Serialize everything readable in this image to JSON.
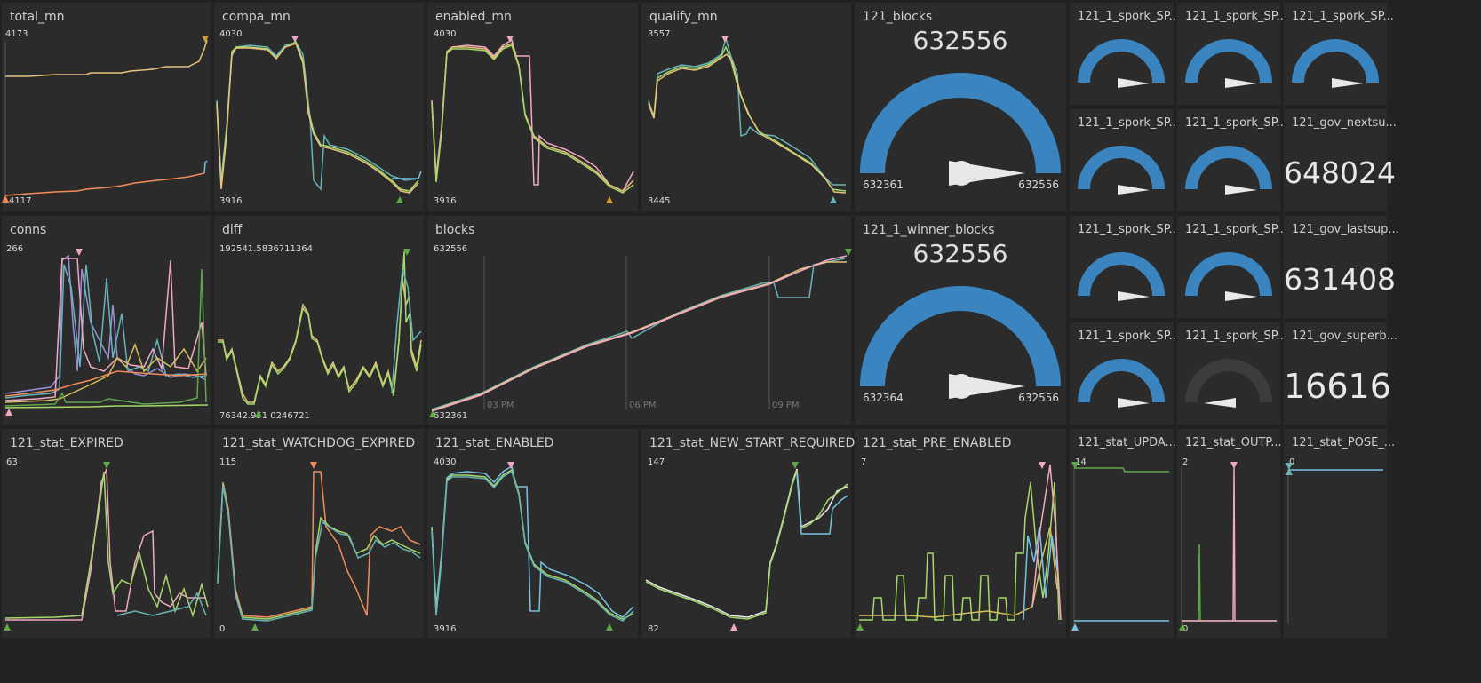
{
  "colors": {
    "background": "#222222",
    "panel": "#2b2b2b",
    "gauge_fill": "#3a85bf",
    "gauge_track": "#3c3c3c",
    "needle": "#e8e8e8",
    "series": [
      "#e6c27a",
      "#f08c5a",
      "#a6d96a",
      "#66b3b8",
      "#f2a7c5",
      "#9b8fd6",
      "#d4c05a",
      "#79c3e6",
      "#5fa84a"
    ]
  },
  "panels": {
    "total_mn": {
      "title": "total_mn",
      "max": "4173",
      "min": "4117"
    },
    "compa_mn": {
      "title": "compa_mn",
      "max": "4030",
      "min": "3916"
    },
    "enabled_mn": {
      "title": "enabled_mn",
      "max": "4030",
      "min": "3916"
    },
    "qualify_mn": {
      "title": "qualify_mn",
      "max": "3557",
      "min": "3445"
    },
    "conns": {
      "title": "conns",
      "max": "266"
    },
    "diff": {
      "title": "diff",
      "max": "192541.5836711364",
      "min": "76342.951  0246721"
    },
    "blocks": {
      "title": "blocks",
      "max": "632556",
      "min": "632361",
      "ticks": [
        "03 PM",
        "06 PM",
        "09 PM"
      ]
    },
    "stat_expired": {
      "title": "121_stat_EXPIRED",
      "max": "63"
    },
    "stat_watchdog": {
      "title": "121_stat_WATCHDOG_EXPIRED",
      "max": "115",
      "min": "0"
    },
    "stat_enabled": {
      "title": "121_stat_ENABLED",
      "max": "4030",
      "min": "3916"
    },
    "stat_newstart": {
      "title": "121_stat_NEW_START_REQUIRED",
      "max": "147",
      "min": "82"
    },
    "stat_preenabled": {
      "title": "121_stat_PRE_ENABLED",
      "max": "7"
    },
    "stat_upda": {
      "title": "121_stat_UPDA...",
      "max": "14"
    },
    "stat_outp": {
      "title": "121_stat_OUTP...",
      "max": "2",
      "min": "0"
    },
    "stat_pose": {
      "title": "121_stat_POSE_...",
      "max": "0"
    }
  },
  "gauges": {
    "blocks121": {
      "title": "121_blocks",
      "value": "632556",
      "min": "632361",
      "max": "632556",
      "fill": 1.0
    },
    "winner": {
      "title": "121_1_winner_blocks",
      "value": "632556",
      "min": "632364",
      "max": "632556",
      "fill": 1.0
    },
    "spork": [
      {
        "title": "121_1_spork_SP...",
        "fill": 1.0
      },
      {
        "title": "121_1_spork_SP...",
        "fill": 1.0
      },
      {
        "title": "121_1_spork_SP...",
        "fill": 1.0
      },
      {
        "title": "121_1_spork_SP...",
        "fill": 1.0
      },
      {
        "title": "121_1_spork_SP...",
        "fill": 1.0
      },
      {
        "title": "121_1_spork_SP...",
        "fill": 1.0
      },
      {
        "title": "121_1_spork_SP...",
        "fill": 1.0
      },
      {
        "title": "121_1_spork_SP...",
        "fill": 1.0
      },
      {
        "title": "121_1_spork_SP...",
        "fill": 0.0
      }
    ]
  },
  "stats": {
    "nextsu": {
      "title": "121_gov_nextsu...",
      "value": "648024"
    },
    "lastsup": {
      "title": "121_gov_lastsup...",
      "value": "631408"
    },
    "superb": {
      "title": "121_gov_superb...",
      "value": "16616"
    }
  }
}
